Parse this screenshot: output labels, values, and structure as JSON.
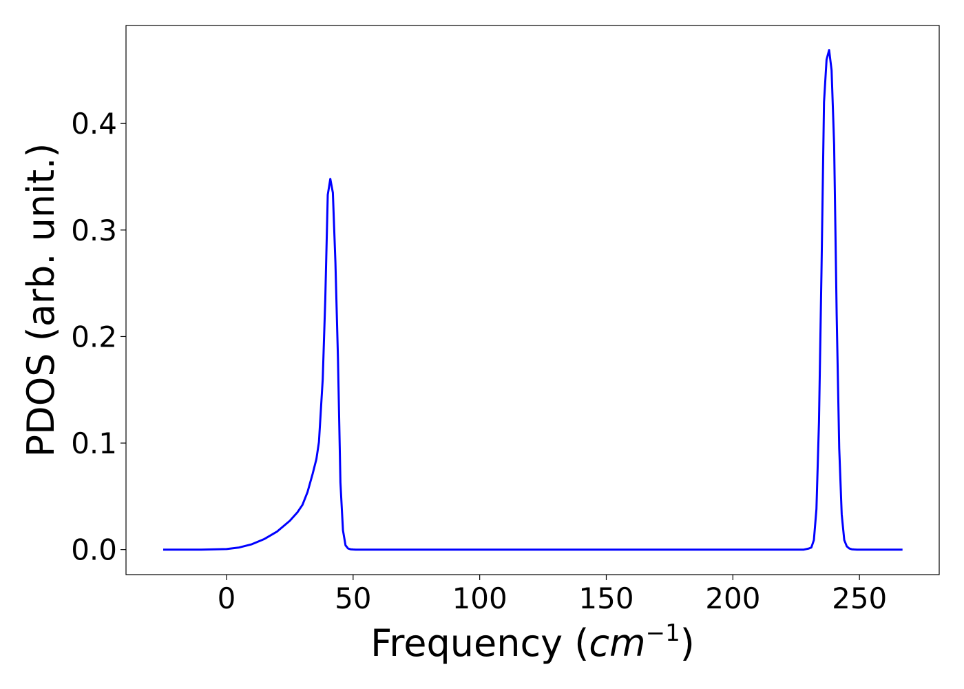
{
  "chart_data": {
    "type": "line",
    "xlabel": "Frequency (",
    "xlabel_unit_base": "cm",
    "xlabel_unit_exp": "−1",
    "xlabel_close": ")",
    "ylabel": "PDOS (arb. unit.)",
    "xlim": [
      -39.7,
      281.5
    ],
    "ylim": [
      -0.0235,
      0.492
    ],
    "xticks": [
      0,
      50,
      100,
      150,
      200,
      250
    ],
    "xtick_labels": [
      "0",
      "50",
      "100",
      "150",
      "200",
      "250"
    ],
    "yticks": [
      0.0,
      0.1,
      0.2,
      0.3,
      0.4
    ],
    "ytick_labels": [
      "0.0",
      "0.1",
      "0.2",
      "0.3",
      "0.4"
    ],
    "grid": false,
    "line_color": "#0000ff",
    "series": [
      {
        "x": [
          -25,
          -10,
          0,
          5,
          10,
          15,
          20,
          25,
          28,
          30,
          32,
          34,
          35.5,
          36.5,
          38,
          39,
          40,
          41,
          42,
          43,
          44,
          45,
          46,
          47,
          48,
          49,
          50,
          51,
          52,
          53,
          55,
          60,
          100,
          150,
          200,
          228,
          230,
          231,
          232,
          233,
          234,
          235,
          236,
          237,
          238,
          239,
          240,
          241,
          242,
          243,
          244,
          245,
          246,
          247,
          248,
          249,
          250,
          252,
          267
        ],
        "y": [
          0,
          0,
          0.0005,
          0.002,
          0.005,
          0.01,
          0.017,
          0.027,
          0.035,
          0.042,
          0.054,
          0.071,
          0.085,
          0.101,
          0.16,
          0.235,
          0.333,
          0.348,
          0.335,
          0.27,
          0.18,
          0.063,
          0.018,
          0.004,
          0.001,
          0.0003,
          0.0001,
          0,
          0,
          0,
          0,
          0,
          0,
          0,
          0,
          0,
          0.001,
          0.002,
          0.009,
          0.038,
          0.12,
          0.26,
          0.42,
          0.46,
          0.469,
          0.45,
          0.38,
          0.22,
          0.095,
          0.033,
          0.009,
          0.003,
          0.001,
          0.0003,
          0.0001,
          0,
          0,
          0,
          0
        ]
      }
    ]
  }
}
